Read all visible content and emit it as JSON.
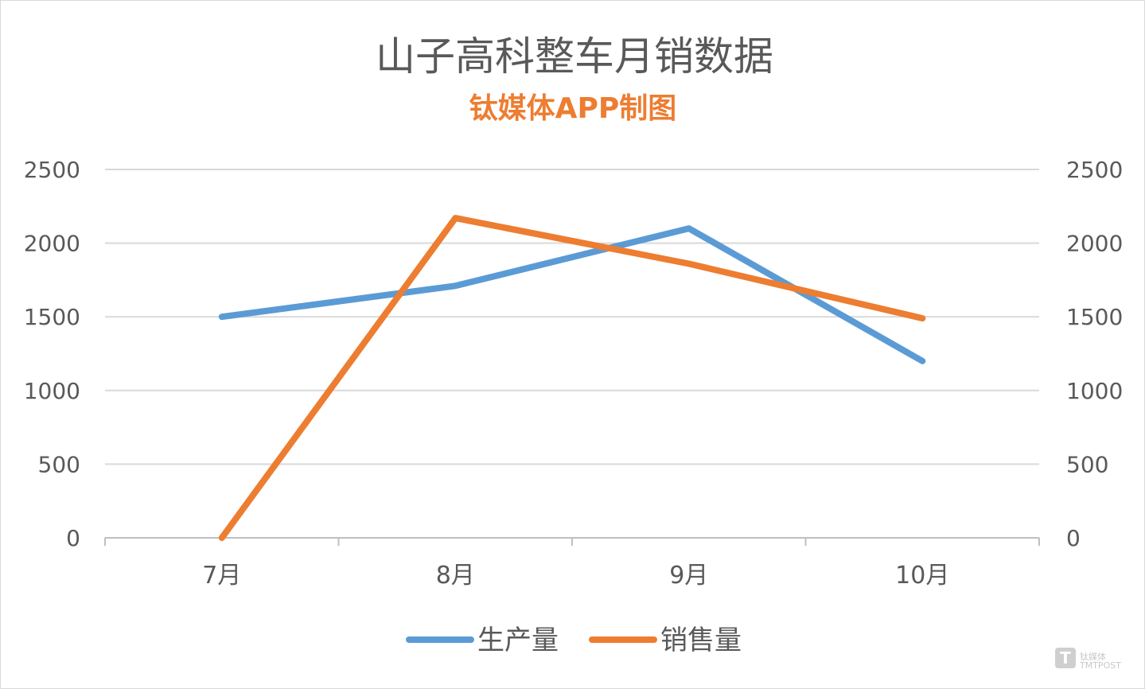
{
  "chart_data": {
    "type": "line",
    "title": "山子高科整车月销数据",
    "subtitle": "钛媒体APP制图",
    "categories": [
      "7月",
      "8月",
      "9月",
      "10月"
    ],
    "series": [
      {
        "name": "生产量",
        "values": [
          1500,
          1710,
          2100,
          1200
        ],
        "color": "#5b9bd5",
        "axis": "left"
      },
      {
        "name": "销售量",
        "values": [
          0,
          2170,
          1860,
          1490
        ],
        "color": "#ed7d31",
        "axis": "right"
      }
    ],
    "y_ticks": [
      "0",
      "500",
      "1000",
      "1500",
      "2000",
      "2500"
    ],
    "ylim": [
      0,
      2500
    ],
    "y2lim": [
      0,
      2500
    ],
    "grid": true,
    "legend_position": "bottom",
    "subtitle_color": "#ed7d31",
    "gridline_color": "#d9d9d9",
    "axis_color": "#bfbfbf"
  },
  "watermark": {
    "icon": "tmtpost-logo-icon",
    "text": "钛媒体",
    "subtext": "TMTPOST"
  }
}
